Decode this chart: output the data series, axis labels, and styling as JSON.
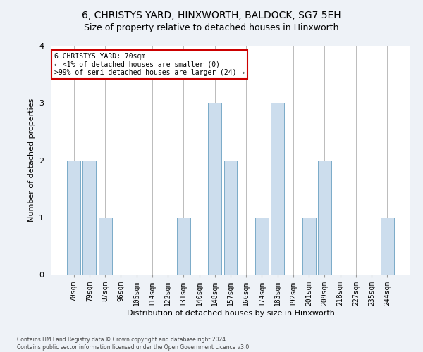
{
  "title1": "6, CHRISTYS YARD, HINXWORTH, BALDOCK, SG7 5EH",
  "title2": "Size of property relative to detached houses in Hinxworth",
  "xlabel": "Distribution of detached houses by size in Hinxworth",
  "ylabel": "Number of detached properties",
  "categories": [
    "70sqm",
    "79sqm",
    "87sqm",
    "96sqm",
    "105sqm",
    "114sqm",
    "122sqm",
    "131sqm",
    "140sqm",
    "148sqm",
    "157sqm",
    "166sqm",
    "174sqm",
    "183sqm",
    "192sqm",
    "201sqm",
    "209sqm",
    "218sqm",
    "227sqm",
    "235sqm",
    "244sqm"
  ],
  "values": [
    2,
    2,
    1,
    0,
    0,
    0,
    0,
    1,
    0,
    3,
    2,
    0,
    1,
    3,
    0,
    1,
    2,
    0,
    0,
    0,
    1
  ],
  "bar_color": "#ccdded",
  "bar_edge_color": "#7aaac8",
  "ylim": [
    0,
    4
  ],
  "yticks": [
    0,
    1,
    2,
    3,
    4
  ],
  "annotation_text": "6 CHRISTYS YARD: 70sqm\n← <1% of detached houses are smaller (0)\n>99% of semi-detached houses are larger (24) →",
  "annotation_box_color": "#ffffff",
  "annotation_box_edge": "#cc0000",
  "footer1": "Contains HM Land Registry data © Crown copyright and database right 2024.",
  "footer2": "Contains public sector information licensed under the Open Government Licence v3.0.",
  "bg_color": "#eef2f7",
  "plot_bg_color": "#ffffff",
  "grid_color": "#bbbbbb",
  "title1_fontsize": 10,
  "title2_fontsize": 9,
  "ylabel_fontsize": 8,
  "xlabel_fontsize": 8,
  "tick_fontsize": 7,
  "ann_fontsize": 7,
  "footer_fontsize": 5.5
}
